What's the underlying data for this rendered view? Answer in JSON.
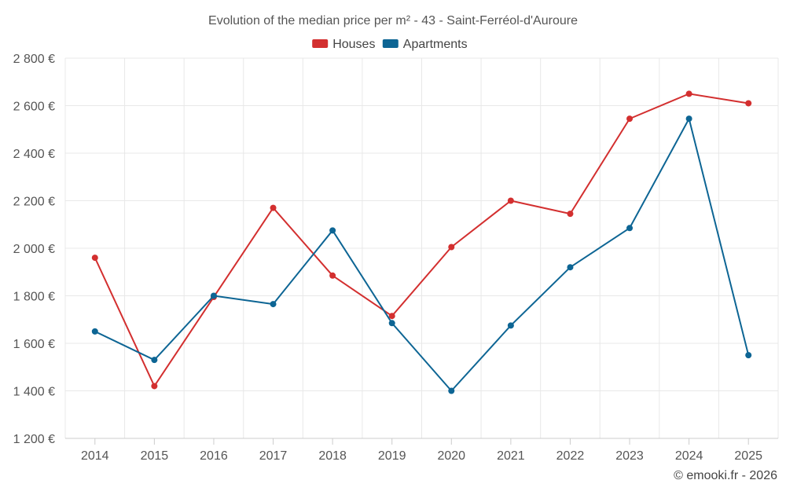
{
  "chart_data": {
    "type": "line",
    "title": "Evolution of the median price per m² - 43 - Saint-Ferréol-d'Auroure",
    "categories": [
      "2014",
      "2015",
      "2016",
      "2017",
      "2018",
      "2019",
      "2020",
      "2021",
      "2022",
      "2023",
      "2024",
      "2025"
    ],
    "series": [
      {
        "name": "Houses",
        "color": "#d32f2f",
        "values": [
          1960,
          1420,
          1795,
          2170,
          1885,
          1715,
          2005,
          2200,
          2145,
          2545,
          2650,
          2610
        ]
      },
      {
        "name": "Apartments",
        "color": "#0d6594",
        "values": [
          1650,
          1530,
          1800,
          1765,
          2075,
          1685,
          1400,
          1675,
          1920,
          2085,
          2545,
          1550
        ]
      }
    ],
    "y_ticks": [
      "1 200 €",
      "1 400 €",
      "1 600 €",
      "1 800 €",
      "2 000 €",
      "2 200 €",
      "2 400 €",
      "2 600 €",
      "2 800 €"
    ],
    "ylim": [
      1200,
      2800
    ],
    "grid": true,
    "legend_position": "top-center"
  },
  "credit": "© emooki.fr - 2026"
}
